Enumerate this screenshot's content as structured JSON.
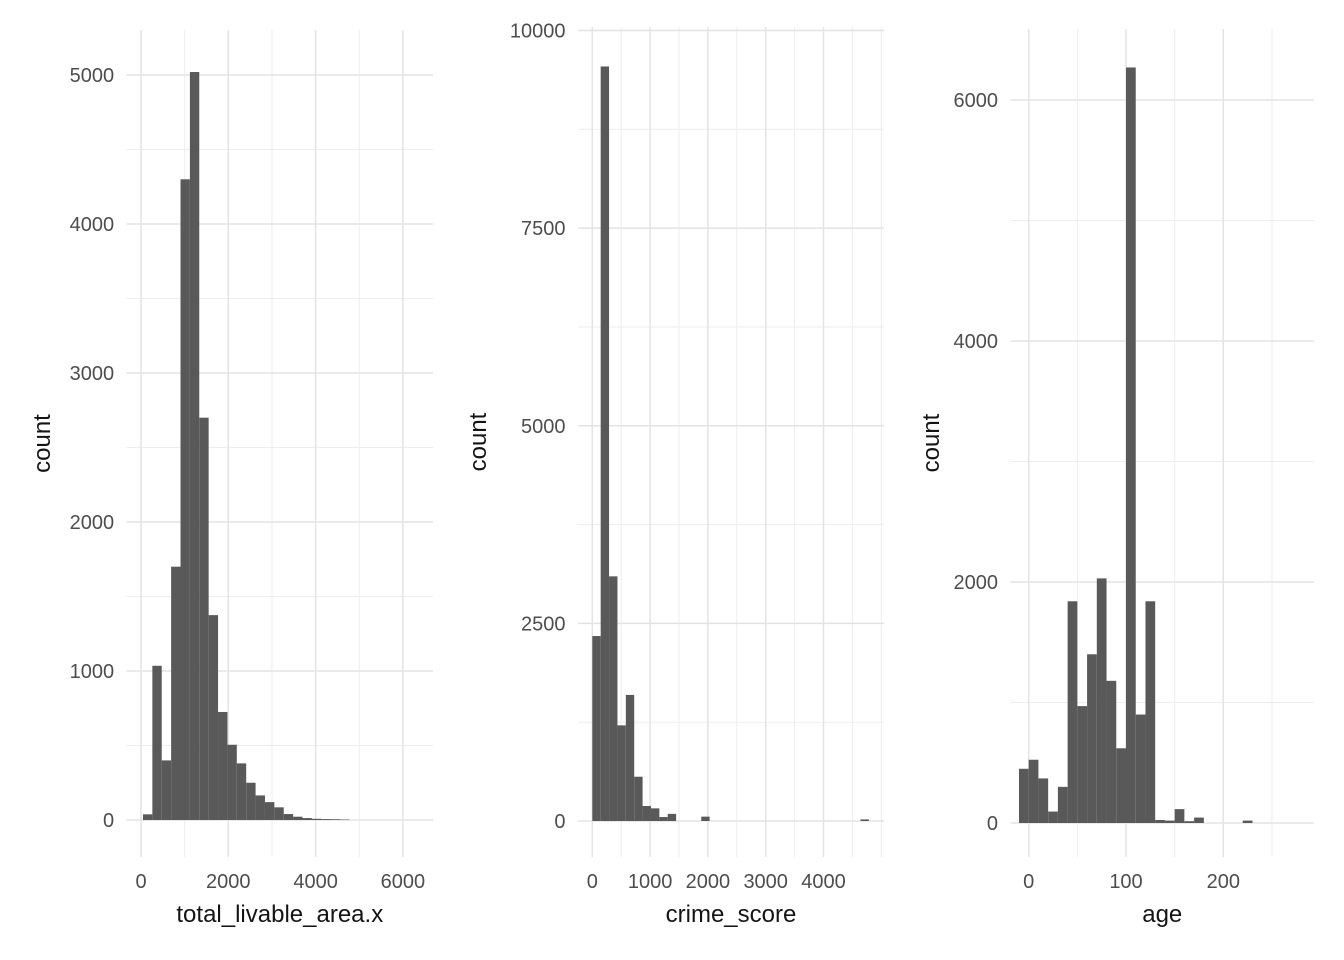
{
  "figure": {
    "background": "#ffffff",
    "bar_color": "#595959",
    "grid_major_color": "#e3e3e3",
    "grid_minor_color": "#ededed",
    "tick_label_color": "#4d4d4d",
    "axis_title_color": "#141414",
    "panel_count": 3
  },
  "chart_data": [
    {
      "type": "bar",
      "name": "total-livable-area-histogram",
      "title": "",
      "xlabel": "total_livable_area.x",
      "ylabel": "count",
      "x_range": [
        -330,
        6690
      ],
      "y_range": [
        0,
        5300
      ],
      "grid": true,
      "x_ticks": {
        "values": [
          0,
          2000,
          4000,
          6000
        ],
        "labels": [
          "0",
          "2000",
          "4000",
          "6000"
        ]
      },
      "x_minor": [
        1000,
        3000,
        5000
      ],
      "y_ticks": {
        "values": [
          0,
          1000,
          2000,
          3000,
          4000,
          5000
        ],
        "labels": [
          "0",
          "1000",
          "2000",
          "3000",
          "4000",
          "5000"
        ]
      },
      "y_minor": [
        500,
        1500,
        2500,
        3500,
        4500
      ],
      "bars": [
        [
          45,
          260,
          38
        ],
        [
          260,
          475,
          1035
        ],
        [
          475,
          690,
          400
        ],
        [
          690,
          905,
          1700
        ],
        [
          905,
          1120,
          4300
        ],
        [
          1120,
          1335,
          5020
        ],
        [
          1335,
          1550,
          2700
        ],
        [
          1550,
          1765,
          1375
        ],
        [
          1765,
          1980,
          725
        ],
        [
          1980,
          2195,
          505
        ],
        [
          2195,
          2410,
          380
        ],
        [
          2410,
          2625,
          250
        ],
        [
          2625,
          2840,
          165
        ],
        [
          2840,
          3055,
          120
        ],
        [
          3055,
          3270,
          85
        ],
        [
          3270,
          3485,
          40
        ],
        [
          3485,
          3700,
          22
        ],
        [
          3700,
          3915,
          13
        ],
        [
          3915,
          4130,
          8
        ],
        [
          4130,
          4345,
          6
        ],
        [
          4345,
          4560,
          5
        ],
        [
          4560,
          4775,
          3
        ]
      ]
    },
    {
      "type": "bar",
      "name": "crime-score-histogram",
      "title": "",
      "xlabel": "crime_score",
      "ylabel": "count",
      "x_range": [
        -250,
        5050
      ],
      "y_range": [
        0,
        10060
      ],
      "grid": true,
      "x_ticks": {
        "values": [
          0,
          1000,
          2000,
          3000,
          4000
        ],
        "labels": [
          "0",
          "1000",
          "2000",
          "3000",
          "4000"
        ]
      },
      "x_minor": [
        500,
        1500,
        2500,
        3500,
        4500,
        5000
      ],
      "y_ticks": {
        "values": [
          0,
          2500,
          5000,
          7500,
          10000
        ],
        "labels": [
          "0",
          "2500",
          "5000",
          "7500",
          "10000"
        ]
      },
      "y_minor": [
        1250,
        3750,
        6250,
        8750
      ],
      "bars": [
        [
          0,
          145,
          2340
        ],
        [
          145,
          290,
          9545
        ],
        [
          290,
          435,
          3095
        ],
        [
          435,
          580,
          1210
        ],
        [
          580,
          725,
          1595
        ],
        [
          725,
          870,
          560
        ],
        [
          870,
          1015,
          190
        ],
        [
          1015,
          1160,
          160
        ],
        [
          1160,
          1305,
          50
        ],
        [
          1305,
          1450,
          90
        ],
        [
          1885,
          2030,
          55
        ],
        [
          4640,
          4785,
          20
        ]
      ]
    },
    {
      "type": "bar",
      "name": "age-histogram",
      "title": "",
      "xlabel": "age",
      "ylabel": "count",
      "x_range": [
        -19,
        293
      ],
      "y_range": [
        0,
        6590
      ],
      "grid": true,
      "x_ticks": {
        "values": [
          0,
          100,
          200
        ],
        "labels": [
          "0",
          "100",
          "200"
        ]
      },
      "x_minor": [
        50,
        150,
        250
      ],
      "y_ticks": {
        "values": [
          0,
          2000,
          4000,
          6000
        ],
        "labels": [
          "0",
          "2000",
          "4000",
          "6000"
        ]
      },
      "y_minor": [
        1000,
        3000,
        5000
      ],
      "bars": [
        [
          -10,
          0,
          450
        ],
        [
          0,
          10,
          525
        ],
        [
          10,
          20,
          370
        ],
        [
          20,
          30,
          95
        ],
        [
          30,
          40,
          300
        ],
        [
          40,
          50,
          1840
        ],
        [
          50,
          60,
          970
        ],
        [
          60,
          70,
          1400
        ],
        [
          70,
          80,
          2030
        ],
        [
          80,
          90,
          1180
        ],
        [
          90,
          100,
          620
        ],
        [
          100,
          110,
          6270
        ],
        [
          110,
          120,
          900
        ],
        [
          120,
          130,
          1840
        ],
        [
          130,
          140,
          25
        ],
        [
          140,
          150,
          20
        ],
        [
          150,
          160,
          115
        ],
        [
          160,
          170,
          15
        ],
        [
          170,
          180,
          45
        ],
        [
          220,
          230,
          20
        ]
      ]
    }
  ]
}
